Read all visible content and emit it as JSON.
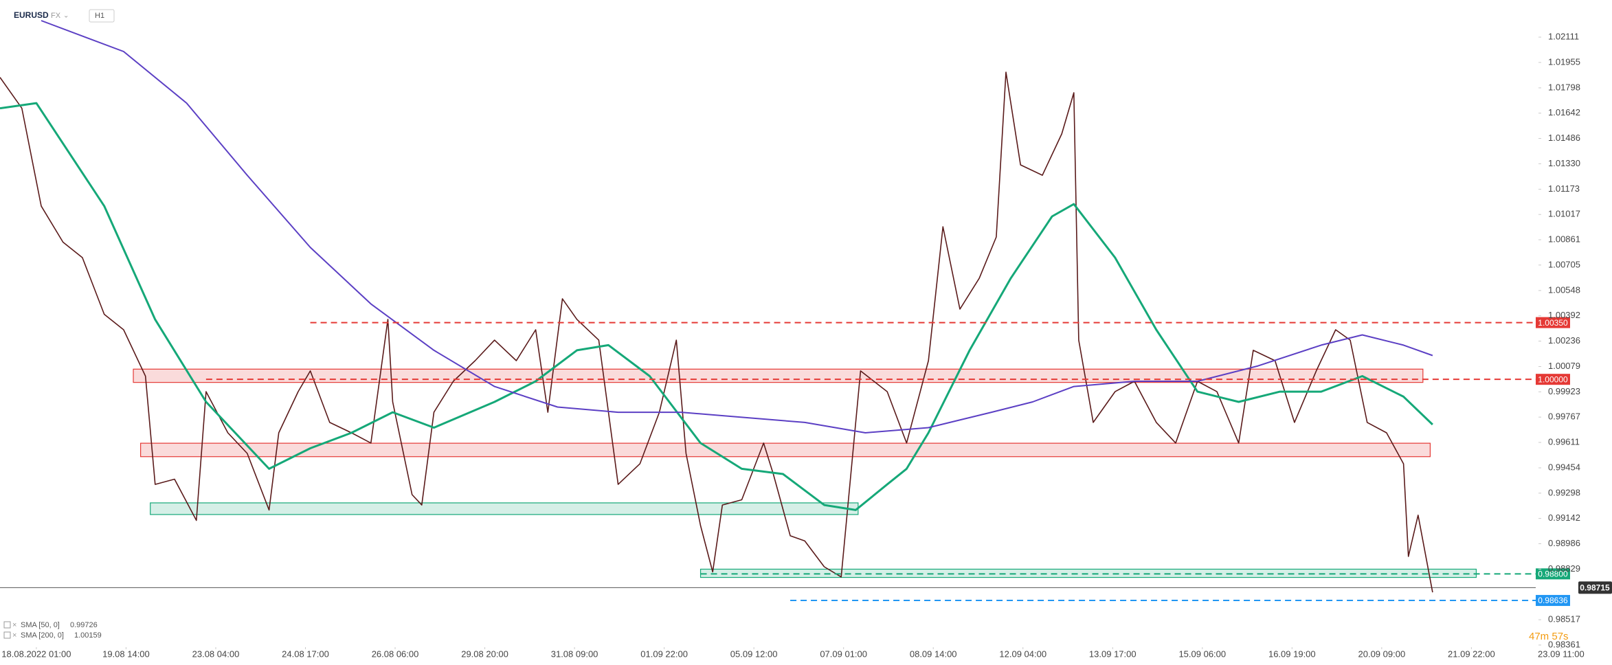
{
  "header": {
    "symbol": "EURUSD",
    "market": "FX",
    "interval": "H1"
  },
  "timer": "47m 57s",
  "chart_data": {
    "type": "line",
    "xlim": [
      0,
      665
    ],
    "ylim": [
      0.98348,
      1.0234
    ],
    "grid": false,
    "yticks": [
      {
        "value": 1.02111,
        "label": "1.02111"
      },
      {
        "value": 1.01955,
        "label": "1.01955"
      },
      {
        "value": 1.01798,
        "label": "1.01798"
      },
      {
        "value": 1.01642,
        "label": "1.01642"
      },
      {
        "value": 1.01486,
        "label": "1.01486"
      },
      {
        "value": 1.0133,
        "label": "1.01330"
      },
      {
        "value": 1.01173,
        "label": "1.01173"
      },
      {
        "value": 1.01017,
        "label": "1.01017"
      },
      {
        "value": 1.00861,
        "label": "1.00861"
      },
      {
        "value": 1.00705,
        "label": "1.00705"
      },
      {
        "value": 1.00548,
        "label": "1.00548"
      },
      {
        "value": 1.00392,
        "label": "1.00392"
      },
      {
        "value": 1.00236,
        "label": "1.00236"
      },
      {
        "value": 1.00079,
        "label": "1.00079"
      },
      {
        "value": 0.99923,
        "label": "0.99923"
      },
      {
        "value": 0.99767,
        "label": "0.99767"
      },
      {
        "value": 0.99611,
        "label": "0.99611"
      },
      {
        "value": 0.99454,
        "label": "0.99454"
      },
      {
        "value": 0.99298,
        "label": "0.99298"
      },
      {
        "value": 0.99142,
        "label": "0.99142"
      },
      {
        "value": 0.98986,
        "label": "0.98986"
      },
      {
        "value": 0.98829,
        "label": "0.98829"
      },
      {
        "value": 0.98517,
        "label": "0.98517"
      },
      {
        "value": 0.98361,
        "label": "0.98361"
      }
    ],
    "xticks": [
      {
        "value": 15,
        "label": "18.08.2022 01:00"
      },
      {
        "value": 52,
        "label": "19.08 14:00"
      },
      {
        "value": 89,
        "label": "23.08 04:00"
      },
      {
        "value": 126,
        "label": "24.08 17:00"
      },
      {
        "value": 163,
        "label": "26.08 06:00"
      },
      {
        "value": 200,
        "label": "29.08 20:00"
      },
      {
        "value": 237,
        "label": "31.08 09:00"
      },
      {
        "value": 274,
        "label": "01.09 22:00"
      },
      {
        "value": 311,
        "label": "05.09 12:00"
      },
      {
        "value": 348,
        "label": "07.09 01:00"
      },
      {
        "value": 385,
        "label": "08.09 14:00"
      },
      {
        "value": 422,
        "label": "12.09 04:00"
      },
      {
        "value": 459,
        "label": "13.09 17:00"
      },
      {
        "value": 496,
        "label": "15.09 06:00"
      },
      {
        "value": 533,
        "label": "16.09 19:00"
      },
      {
        "value": 570,
        "label": "20.09 09:00"
      },
      {
        "value": 607,
        "label": "21.09 22:00"
      },
      {
        "value": 644,
        "label": "23.09 11:00"
      }
    ],
    "series": [
      {
        "color": "#5a1a1a",
        "x": [
          0,
          9,
          17,
          26,
          34,
          43,
          51,
          60,
          64,
          72,
          81,
          85,
          94,
          102,
          111,
          115,
          123,
          128,
          136,
          145,
          153,
          160,
          162,
          170,
          174,
          179,
          187,
          196,
          204,
          213,
          221,
          226,
          232,
          238,
          247,
          255,
          264,
          272,
          279,
          283,
          289,
          294,
          298,
          306,
          315,
          319,
          326,
          332,
          340,
          347,
          351,
          355,
          366,
          374,
          383,
          389,
          396,
          404,
          411,
          415,
          421,
          430,
          438,
          443,
          445,
          451,
          460,
          468,
          477,
          485,
          494,
          502,
          511,
          517,
          526,
          534,
          543,
          551,
          557,
          564,
          572,
          579,
          581,
          585,
          591
        ],
        "values": [
          1.01863,
          1.01672,
          1.01069,
          1.00846,
          1.00751,
          1.00401,
          1.00306,
          1.0002,
          0.99352,
          0.99384,
          0.9913,
          0.99924,
          0.9967,
          0.99543,
          0.99194,
          0.9967,
          0.99924,
          1.00052,
          0.99734,
          0.9967,
          0.99607,
          1.0037,
          0.99861,
          0.99289,
          0.99225,
          0.99797,
          0.99988,
          1.00115,
          1.00242,
          1.00115,
          1.00306,
          0.99797,
          1.00497,
          1.0037,
          1.00242,
          0.99352,
          0.99479,
          0.99797,
          1.00242,
          0.99543,
          0.99098,
          0.98812,
          0.99225,
          0.99257,
          0.99607,
          0.99416,
          0.99035,
          0.99003,
          0.98844,
          0.98781,
          0.99416,
          1.00052,
          0.99924,
          0.99607,
          1.00115,
          1.00941,
          1.00433,
          1.00624,
          1.00878,
          1.01895,
          1.01323,
          1.01259,
          1.01514,
          1.01768,
          1.00242,
          0.99734,
          0.99924,
          0.99988,
          0.99734,
          0.99607,
          0.99988,
          0.99924,
          0.99607,
          1.00179,
          1.00115,
          0.99734,
          1.00052,
          1.00306,
          1.00242,
          0.99734,
          0.9967,
          0.99479,
          0.98908,
          0.99162,
          0.98686
        ]
      },
      {
        "name": "SMA [50, 0]",
        "last": 0.99726,
        "color": "#15a878",
        "x": [
          0,
          15,
          43,
          64,
          85,
          111,
          128,
          145,
          162,
          179,
          204,
          221,
          238,
          251,
          268,
          289,
          306,
          323,
          340,
          353,
          366,
          374,
          383,
          400,
          417,
          434,
          443,
          460,
          477,
          494,
          511,
          528,
          545,
          562,
          579,
          591
        ],
        "values": [
          1.01672,
          1.01704,
          1.01069,
          1.00369,
          0.99861,
          0.99448,
          0.99575,
          0.9967,
          0.99797,
          0.99702,
          0.99861,
          0.99988,
          1.00179,
          1.00211,
          1.0002,
          0.99607,
          0.99448,
          0.99416,
          0.99225,
          0.99194,
          0.99352,
          0.99448,
          0.9967,
          1.00179,
          1.00624,
          1.01005,
          1.01081,
          1.00751,
          1.00306,
          0.99924,
          0.99861,
          0.99924,
          0.99924,
          1.0002,
          0.99893,
          0.99721
        ]
      },
      {
        "name": "SMA [200, 0]",
        "last": 1.00159,
        "color": "#5b3fc4",
        "x": [
          17,
          51,
          77,
          102,
          128,
          153,
          179,
          204,
          230,
          255,
          281,
          306,
          332,
          357,
          383,
          409,
          426,
          443,
          468,
          494,
          519,
          545,
          562,
          579,
          591
        ],
        "values": [
          1.02213,
          1.02022,
          1.01704,
          1.01259,
          1.00814,
          1.00465,
          1.00179,
          0.99956,
          0.99829,
          0.99797,
          0.99797,
          0.99766,
          0.99734,
          0.9967,
          0.99702,
          0.99797,
          0.99861,
          0.99956,
          0.99988,
          0.99988,
          1.00083,
          1.00211,
          1.00274,
          1.00211,
          1.00147
        ]
      }
    ],
    "zones": [
      {
        "x": [
          55,
          587
        ],
        "y": [
          0.99981,
          1.00063
        ],
        "color": "#e53935"
      },
      {
        "x": [
          58,
          590
        ],
        "y": [
          0.99523,
          0.99606
        ],
        "color": "#e53935"
      },
      {
        "x": [
          62,
          354
        ],
        "y": [
          0.99166,
          0.99238
        ],
        "color": "#15a878"
      },
      {
        "x": [
          289,
          609
        ],
        "y": [
          0.98778,
          0.98829
        ],
        "color": "#15a878"
      }
    ],
    "levels": [
      {
        "value": 1.0035,
        "label": "1.00350",
        "start": 128,
        "color": "#e53935"
      },
      {
        "value": 1.0,
        "label": "1.00000",
        "start": 85,
        "color": "#e53935"
      },
      {
        "value": 0.988,
        "label": "0.98800",
        "start": 289,
        "color": "#15a878"
      },
      {
        "value": 0.98636,
        "label": "0.98636",
        "start": 326,
        "color": "#2196f3"
      }
    ],
    "price": {
      "value": 0.98715,
      "label": "0.98715",
      "color": "#333333"
    }
  }
}
